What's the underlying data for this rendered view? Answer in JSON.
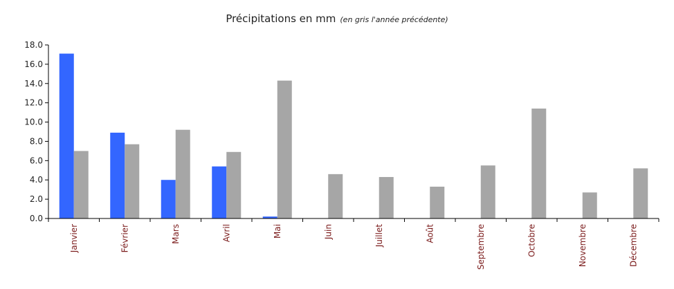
{
  "chart_data": {
    "type": "bar",
    "title": "Précipitations en mm",
    "subtitle": "(en gris l'année précédente)",
    "categories": [
      "Janvier",
      "Février",
      "Mars",
      "Avril",
      "Mai",
      "Juin",
      "Juillet",
      "Août",
      "Septembre",
      "Octobre",
      "Novembre",
      "Décembre"
    ],
    "series": [
      {
        "values": [
          17.1,
          8.9,
          4.0,
          5.4,
          0.2,
          0,
          0,
          0,
          0,
          0,
          0,
          0
        ],
        "color": "#3366ff"
      },
      {
        "values": [
          7.0,
          7.7,
          9.2,
          6.9,
          14.3,
          4.6,
          4.3,
          3.3,
          5.5,
          11.4,
          2.7,
          5.2
        ],
        "color": "#a6a6a6"
      }
    ],
    "ylim": [
      0,
      18
    ],
    "yticks": [
      "0.0",
      "2.0",
      "4.0",
      "6.0",
      "8.0",
      "10.0",
      "12.0",
      "14.0",
      "16.0",
      "18.0"
    ],
    "grid": false,
    "legend": "none"
  }
}
